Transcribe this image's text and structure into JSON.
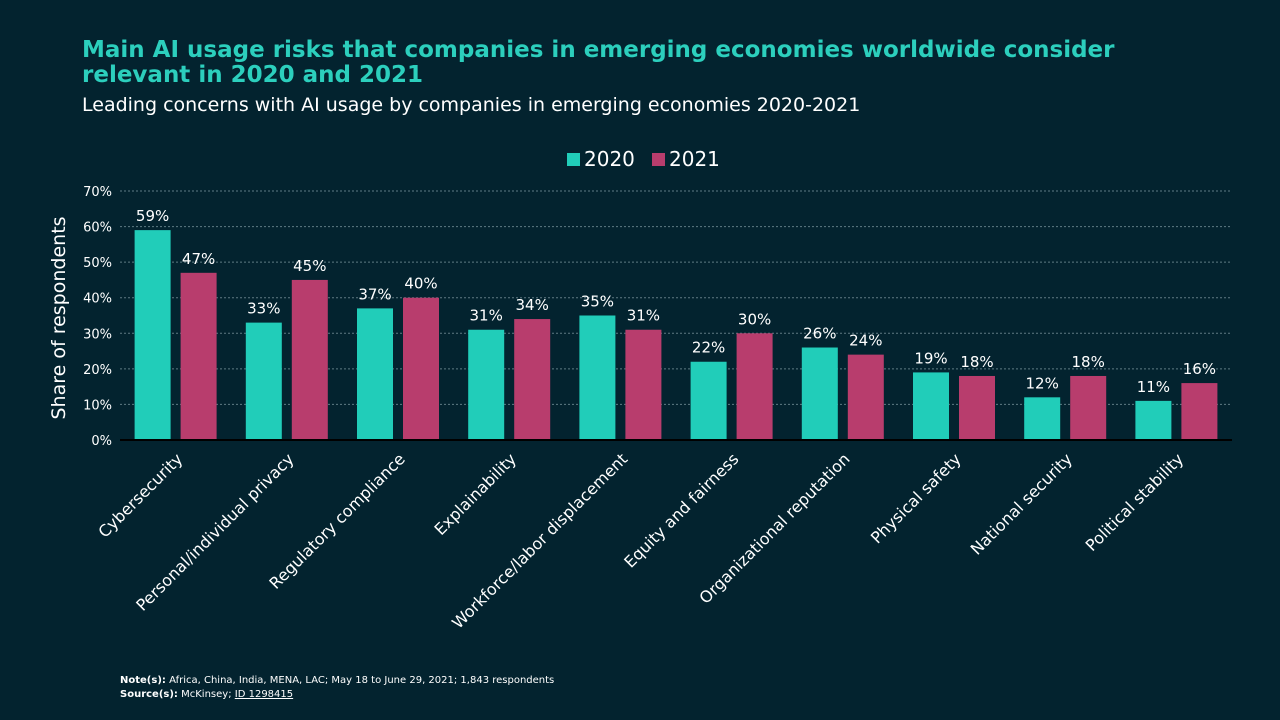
{
  "header": {
    "title": "Main AI usage risks that companies in emerging economies worldwide consider relevant in 2020 and 2021",
    "subtitle": "Leading concerns with AI usage by companies in emerging economies 2020-2021"
  },
  "colors": {
    "background": "#03232f",
    "series_2020": "#21cdb9",
    "series_2021": "#b83d6d",
    "title": "#2ccfbd",
    "text": "#ffffff",
    "grid": "#5f7b84"
  },
  "chart_data": {
    "type": "bar",
    "title": "Main AI usage risks that companies in emerging economies worldwide consider relevant in 2020 and 2021",
    "subtitle": "Leading concerns with AI usage by companies in emerging economies 2020-2021",
    "categories": [
      "Cybersecurity",
      "Personal/individual privacy",
      "Regulatory compliance",
      "Explainability",
      "Workforce/labor displacement",
      "Equity and fairness",
      "Organizational reputation",
      "Physical safety",
      "National security",
      "Political stability"
    ],
    "series": [
      {
        "name": "2020",
        "values": [
          59,
          33,
          37,
          31,
          35,
          22,
          26,
          19,
          12,
          11
        ]
      },
      {
        "name": "2021",
        "values": [
          47,
          45,
          40,
          34,
          31,
          30,
          24,
          18,
          18,
          16
        ]
      }
    ],
    "xlabel": "",
    "ylabel": "Share of respondents",
    "ylim": [
      0,
      70
    ],
    "yticks": [
      0,
      10,
      20,
      30,
      40,
      50,
      60,
      70
    ],
    "value_suffix": "%",
    "grid": true,
    "legend_position": "top-center"
  },
  "footer": {
    "note_label": "Note(s):",
    "note_text": "Africa, China, India, MENA, LAC; May 18 to June 29, 2021; 1,843 respondents",
    "source_label": "Source(s):",
    "source_text": "McKinsey;",
    "source_id": "ID 1298415"
  }
}
